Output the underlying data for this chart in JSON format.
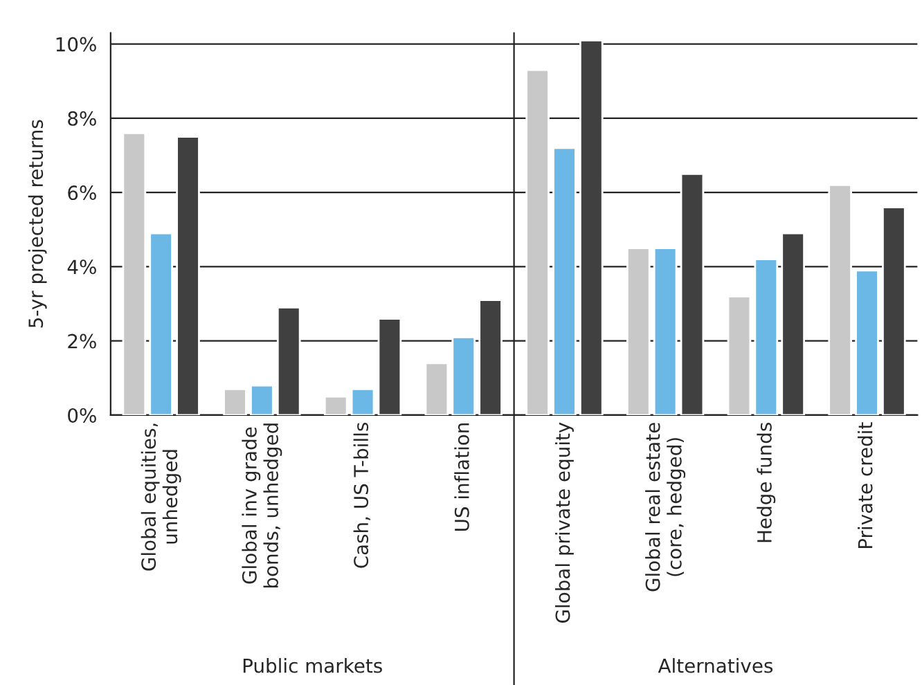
{
  "chart_data": {
    "type": "bar",
    "ylabel": "5-yr projected returns",
    "categories": [
      "Global equities,\nunhedged",
      "Global inv grade\nbonds, unhedged",
      "Cash, US T-bills",
      "US inflation",
      "Global private equity",
      "Global real estate\n(core, hedged)",
      "Hedge funds",
      "Private credit"
    ],
    "series": [
      {
        "color": "#c8c8c8",
        "values": [
          7.6,
          0.7,
          0.5,
          1.4,
          9.3,
          4.5,
          3.2,
          6.2
        ]
      },
      {
        "color": "#6bb8e6",
        "values": [
          4.9,
          0.8,
          0.7,
          2.1,
          7.2,
          4.5,
          4.2,
          3.9
        ]
      },
      {
        "color": "#404040",
        "values": [
          7.5,
          2.9,
          2.6,
          3.1,
          10.1,
          6.5,
          4.9,
          5.6
        ]
      }
    ],
    "ylim": [
      0,
      10.3
    ],
    "yticks": [
      {
        "value": 0,
        "label": "0%"
      },
      {
        "value": 2,
        "label": "2%"
      },
      {
        "value": 4,
        "label": "4%"
      },
      {
        "value": 6,
        "label": "6%"
      },
      {
        "value": 8,
        "label": "8%"
      },
      {
        "value": 10,
        "label": "10%"
      }
    ],
    "grid": "y",
    "legend": false,
    "annotations": [
      "Public markets",
      "Alternatives"
    ]
  }
}
